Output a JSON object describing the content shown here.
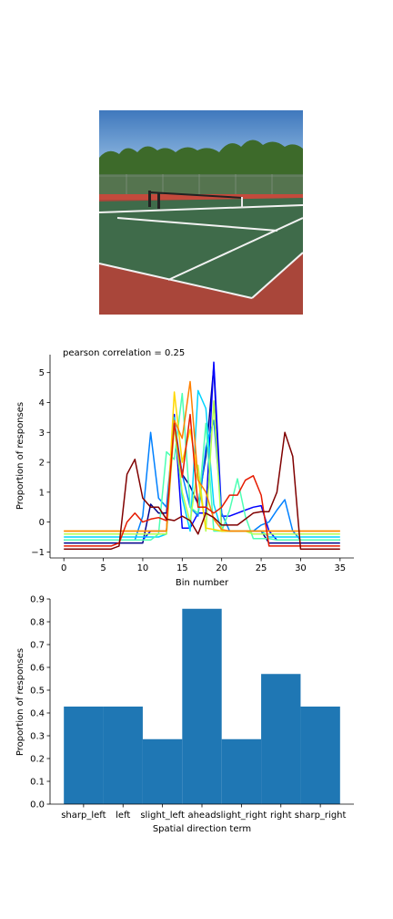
{
  "photo": {
    "icon": "tennis-court-photo",
    "colors": {
      "sky": "#4f86c6",
      "trees": "#3d6a2a",
      "court": "#3f6b4a",
      "surround": "#a9463a",
      "line": "#ffffff"
    }
  },
  "chart_data": [
    {
      "type": "line",
      "title": "pearson correlation = 0.25",
      "xlabel": "Bin number",
      "ylabel": "Proportion of responses",
      "xlim": [
        -1.75,
        36.75
      ],
      "ylim": [
        -1.2,
        5.6
      ],
      "xticks": [
        0,
        5,
        10,
        15,
        20,
        25,
        30,
        35
      ],
      "yticks": [
        -1,
        0,
        1,
        2,
        3,
        4,
        5
      ],
      "grid": false,
      "x": [
        0,
        1,
        2,
        3,
        4,
        5,
        6,
        7,
        8,
        9,
        10,
        11,
        12,
        13,
        14,
        15,
        16,
        17,
        18,
        19,
        20,
        21,
        22,
        23,
        24,
        25,
        26,
        27,
        28,
        29,
        30,
        31,
        32,
        33,
        34,
        35
      ],
      "series": [
        {
          "color": "#00008b",
          "values": [
            -0.7,
            -0.7,
            -0.7,
            -0.7,
            -0.7,
            -0.7,
            -0.7,
            -0.7,
            -0.7,
            -0.7,
            -0.7,
            0.6,
            0.3,
            0.3,
            3.2,
            1.6,
            1.2,
            0.6,
            2.2,
            5.2,
            -0.3,
            -0.3,
            -0.3,
            -0.3,
            -0.3,
            -0.3,
            -0.7,
            -0.7,
            -0.7,
            -0.7,
            -0.7,
            -0.7,
            -0.7,
            -0.7,
            -0.7,
            -0.7
          ]
        },
        {
          "color": "#0000ff",
          "values": [
            -0.6,
            -0.6,
            -0.6,
            -0.6,
            -0.6,
            -0.6,
            -0.6,
            -0.6,
            -0.6,
            -0.6,
            -0.6,
            -0.3,
            -0.3,
            -0.3,
            3.6,
            -0.2,
            -0.2,
            0.3,
            0.3,
            5.35,
            0.2,
            0.2,
            0.3,
            0.4,
            0.5,
            0.55,
            -0.3,
            -0.6,
            -0.6,
            -0.6,
            -0.6,
            -0.6,
            -0.6,
            -0.6,
            -0.6,
            -0.6
          ]
        },
        {
          "color": "#0080ff",
          "values": [
            -0.6,
            -0.6,
            -0.6,
            -0.6,
            -0.6,
            -0.6,
            -0.6,
            -0.6,
            -0.6,
            -0.6,
            0.2,
            3.0,
            0.8,
            0.5,
            3.4,
            1.6,
            0.5,
            0.2,
            2.5,
            3.4,
            0.3,
            -0.3,
            -0.3,
            -0.3,
            -0.3,
            -0.1,
            0.0,
            0.4,
            0.75,
            -0.3,
            -0.6,
            -0.6,
            -0.6,
            -0.6,
            -0.6,
            -0.6
          ]
        },
        {
          "color": "#00d4ff",
          "values": [
            -0.5,
            -0.5,
            -0.5,
            -0.5,
            -0.5,
            -0.5,
            -0.5,
            -0.5,
            -0.5,
            -0.5,
            -0.5,
            -0.5,
            -0.5,
            -0.4,
            3.5,
            0.8,
            -0.3,
            4.4,
            3.8,
            0.6,
            -0.3,
            -0.3,
            -0.3,
            -0.3,
            -0.3,
            -0.3,
            -0.5,
            -0.5,
            -0.5,
            -0.5,
            -0.5,
            -0.5,
            -0.5,
            -0.5,
            -0.5,
            -0.5
          ]
        },
        {
          "color": "#4dffb3",
          "values": [
            -0.6,
            -0.6,
            -0.6,
            -0.6,
            -0.6,
            -0.6,
            -0.6,
            -0.6,
            -0.6,
            -0.6,
            -0.6,
            -0.6,
            -0.4,
            2.35,
            2.1,
            4.3,
            0.5,
            0.3,
            3.3,
            -0.3,
            -0.3,
            0.4,
            1.45,
            0.2,
            -0.55,
            -0.55,
            -0.55,
            -0.6,
            -0.6,
            -0.6,
            -0.6,
            -0.6,
            -0.6,
            -0.6,
            -0.6,
            -0.6
          ]
        },
        {
          "color": "#b3ff4d",
          "values": [
            -0.4,
            -0.4,
            -0.4,
            -0.4,
            -0.4,
            -0.4,
            -0.4,
            -0.4,
            -0.4,
            -0.4,
            -0.4,
            -0.4,
            -0.4,
            -0.4,
            3.2,
            1.0,
            0.0,
            1.9,
            -0.3,
            4.05,
            -0.3,
            -0.3,
            -0.3,
            -0.3,
            -0.4,
            -0.4,
            -0.4,
            -0.4,
            -0.4,
            -0.4,
            -0.4,
            -0.4,
            -0.4,
            -0.4,
            -0.4,
            -0.4
          ]
        },
        {
          "color": "#ffd700",
          "values": [
            -0.3,
            -0.3,
            -0.3,
            -0.3,
            -0.3,
            -0.3,
            -0.3,
            -0.3,
            -0.3,
            -0.3,
            -0.3,
            -0.3,
            -0.3,
            -0.3,
            4.35,
            2.0,
            3.1,
            1.5,
            -0.2,
            -0.25,
            -0.3,
            -0.3,
            -0.3,
            -0.3,
            -0.3,
            -0.3,
            -0.3,
            -0.3,
            -0.3,
            -0.3,
            -0.3,
            -0.3,
            -0.3,
            -0.3,
            -0.3,
            -0.3
          ]
        },
        {
          "color": "#ff8000",
          "values": [
            -0.3,
            -0.3,
            -0.3,
            -0.3,
            -0.3,
            -0.3,
            -0.3,
            -0.3,
            -0.3,
            -0.3,
            -0.3,
            -0.3,
            -0.3,
            -0.3,
            3.4,
            2.8,
            4.7,
            1.4,
            1.0,
            0.1,
            -0.25,
            -0.3,
            -0.3,
            -0.3,
            -0.3,
            -0.3,
            -0.3,
            -0.3,
            -0.3,
            -0.3,
            -0.3,
            -0.3,
            -0.3,
            -0.3,
            -0.3,
            -0.3
          ]
        },
        {
          "color": "#e61a00",
          "values": [
            -0.8,
            -0.8,
            -0.8,
            -0.8,
            -0.8,
            -0.8,
            -0.8,
            -0.7,
            0.0,
            0.3,
            0.0,
            0.1,
            0.15,
            0.05,
            3.3,
            1.5,
            3.6,
            0.5,
            0.5,
            0.3,
            0.5,
            0.9,
            0.9,
            1.4,
            1.55,
            0.9,
            -0.8,
            -0.8,
            -0.8,
            -0.8,
            -0.8,
            -0.8,
            -0.8,
            -0.8,
            -0.8,
            -0.8
          ]
        },
        {
          "color": "#800000",
          "values": [
            -0.9,
            -0.9,
            -0.9,
            -0.9,
            -0.9,
            -0.9,
            -0.9,
            -0.8,
            1.6,
            2.1,
            0.8,
            0.5,
            0.5,
            0.1,
            0.05,
            0.2,
            0.05,
            -0.4,
            0.3,
            0.15,
            -0.1,
            -0.1,
            -0.1,
            0.1,
            0.3,
            0.35,
            0.35,
            1.0,
            3.0,
            2.2,
            -0.9,
            -0.9,
            -0.9,
            -0.9,
            -0.9,
            -0.9
          ]
        }
      ]
    },
    {
      "type": "bar",
      "xlabel": "Spatial direction term",
      "ylabel": "Proportion of responses",
      "categories": [
        "sharp_left",
        "left",
        "slight_left",
        "ahead",
        "slight_right",
        "right",
        "sharp_right"
      ],
      "values": [
        0.428,
        0.428,
        0.285,
        0.857,
        0.285,
        0.571,
        0.428
      ],
      "ylim": [
        0,
        0.9
      ],
      "yticks": [
        "0.0",
        "0.1",
        "0.2",
        "0.3",
        "0.4",
        "0.5",
        "0.6",
        "0.7",
        "0.8",
        "0.9"
      ],
      "color": "#1f77b4",
      "grid": false
    }
  ]
}
